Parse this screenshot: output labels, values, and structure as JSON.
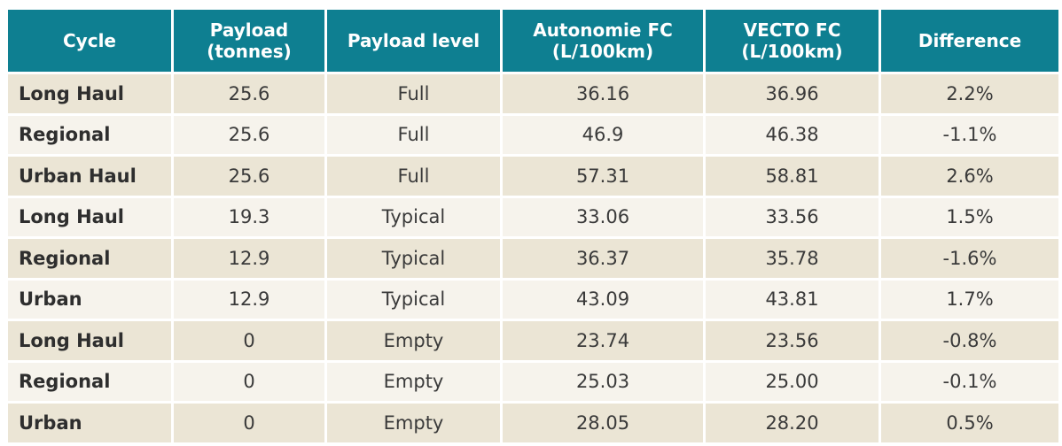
{
  "table": {
    "headers": [
      [
        "Cycle"
      ],
      [
        "Payload",
        "(tonnes)"
      ],
      [
        "Payload level"
      ],
      [
        "Autonomie FC",
        "(L/100km)"
      ],
      [
        "VECTO FC",
        "(L/100km)"
      ],
      [
        "Difference"
      ]
    ],
    "rows": [
      [
        "Long Haul",
        "25.6",
        "Full",
        "36.16",
        "36.96",
        "2.2%"
      ],
      [
        "Regional",
        "25.6",
        "Full",
        "46.9",
        "46.38",
        "-1.1%"
      ],
      [
        "Urban Haul",
        "25.6",
        "Full",
        "57.31",
        "58.81",
        "2.6%"
      ],
      [
        "Long Haul",
        "19.3",
        "Typical",
        "33.06",
        "33.56",
        "1.5%"
      ],
      [
        "Regional",
        "12.9",
        "Typical",
        "36.37",
        "35.78",
        "-1.6%"
      ],
      [
        "Urban",
        "12.9",
        "Typical",
        "43.09",
        "43.81",
        "1.7%"
      ],
      [
        "Long Haul",
        "0",
        "Empty",
        "23.74",
        "23.56",
        "-0.8%"
      ],
      [
        "Regional",
        "0",
        "Empty",
        "25.03",
        "25.00",
        "-0.1%"
      ],
      [
        "Urban",
        "0",
        "Empty",
        "28.05",
        "28.20",
        "0.5%"
      ]
    ]
  },
  "colors": {
    "header_bg": "#0e7f91",
    "header_text": "#ffffff",
    "row_shade": "#ebe5d5",
    "row_light": "#f6f3ec"
  }
}
